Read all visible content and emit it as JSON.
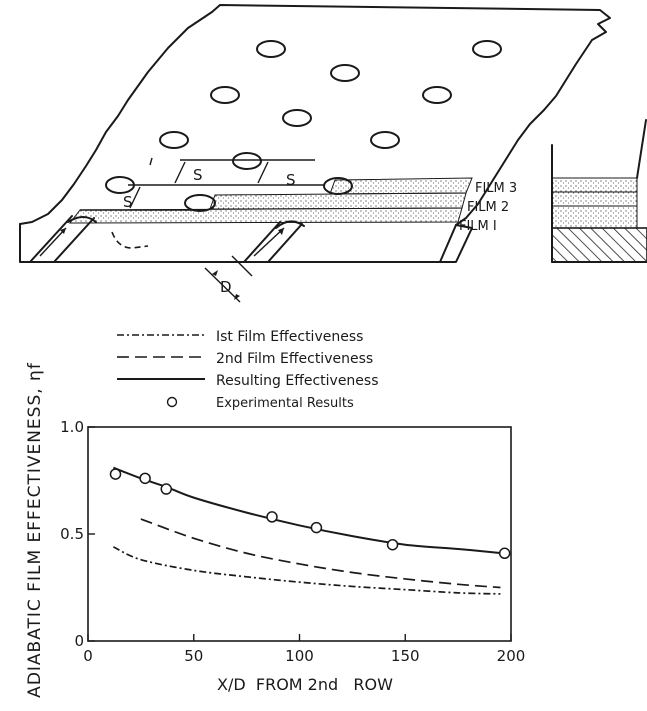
{
  "schematic": {
    "labels": {
      "film3": "FILM 3",
      "film2": "FILM 2",
      "film1": "FILM I",
      "spacing": "S",
      "diameter": "D"
    }
  },
  "chart_data": {
    "type": "line",
    "title": "",
    "xlabel": "X/D  FROM 2nd   ROW",
    "ylabel": "ADIABATIC FILM EFFECTIVENESS, ηf",
    "xlim": [
      0,
      200
    ],
    "ylim": [
      0,
      1.0
    ],
    "x_ticks": [
      0,
      50,
      100,
      150,
      200
    ],
    "x_tick_labels": [
      "0",
      "50",
      "100",
      "150",
      "200"
    ],
    "y_ticks": [
      0,
      0.5,
      1.0
    ],
    "y_tick_labels": [
      "0",
      "0.5",
      "1.0"
    ],
    "grid": false,
    "legend_position": "top-left, above plot",
    "series": [
      {
        "name": "Ist Film Effectiveness",
        "style": "dash-dot",
        "x": [
          12,
          25,
          50,
          75,
          100,
          125,
          150,
          175,
          195
        ],
        "y": [
          0.44,
          0.38,
          0.33,
          0.3,
          0.275,
          0.255,
          0.24,
          0.225,
          0.22
        ]
      },
      {
        "name": "2nd Film Effectiveness",
        "style": "dashed",
        "x": [
          25,
          50,
          75,
          100,
          125,
          150,
          175,
          195
        ],
        "y": [
          0.57,
          0.48,
          0.41,
          0.36,
          0.32,
          0.29,
          0.265,
          0.25
        ]
      },
      {
        "name": "Resulting Effectiveness",
        "style": "solid",
        "x": [
          12,
          25,
          37,
          50,
          75,
          100,
          125,
          150,
          175,
          196
        ],
        "y": [
          0.81,
          0.76,
          0.72,
          0.67,
          0.6,
          0.54,
          0.49,
          0.45,
          0.43,
          0.41
        ]
      },
      {
        "name": "Experimental Results",
        "style": "open-circle-markers",
        "x": [
          13,
          27,
          37,
          87,
          108,
          144,
          197
        ],
        "y": [
          0.78,
          0.76,
          0.71,
          0.58,
          0.53,
          0.45,
          0.41
        ]
      }
    ]
  }
}
